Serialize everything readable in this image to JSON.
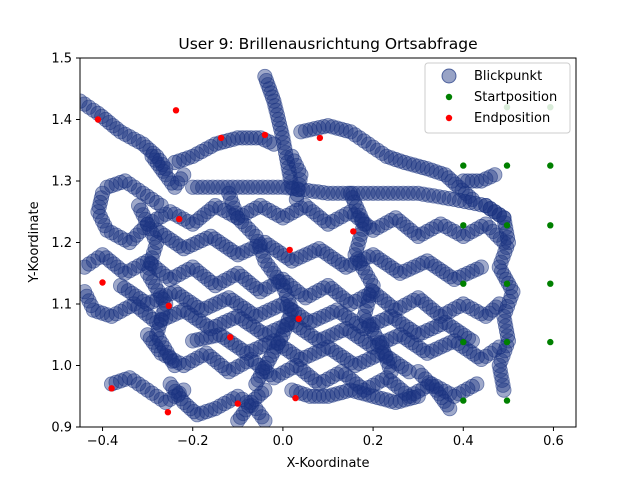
{
  "chart_data": {
    "type": "scatter",
    "title": "User 9: Brillenausrichtung Ortsabfrage",
    "xlabel": "X-Koordinate",
    "ylabel": "Y-Koordinate",
    "xlim": [
      -0.45,
      0.65
    ],
    "ylim": [
      0.9,
      1.5
    ],
    "xticks": [
      -0.4,
      -0.2,
      0.0,
      0.2,
      0.4,
      0.6
    ],
    "xtick_labels": [
      "−0.4",
      "−0.2",
      "0.0",
      "0.2",
      "0.4",
      "0.6"
    ],
    "yticks": [
      0.9,
      1.0,
      1.1,
      1.2,
      1.3,
      1.4,
      1.5
    ],
    "ytick_labels": [
      "0.9",
      "1.0",
      "1.1",
      "1.2",
      "1.3",
      "1.4",
      "1.5"
    ],
    "grid": false,
    "legend_position": "top-right",
    "series": [
      {
        "name": "Blickpunkt",
        "color": "#1a3380",
        "marker": "circle-large-translucent",
        "paths": [
          [
            [
              -0.45,
              1.43
            ],
            [
              -0.41,
              1.41
            ],
            [
              -0.36,
              1.38
            ],
            [
              -0.31,
              1.36
            ],
            [
              -0.28,
              1.34
            ],
            [
              -0.26,
              1.32
            ]
          ],
          [
            [
              -0.29,
              1.34
            ],
            [
              -0.26,
              1.31
            ],
            [
              -0.24,
              1.29
            ],
            [
              -0.22,
              1.31
            ]
          ],
          [
            [
              -0.24,
              1.33
            ],
            [
              -0.2,
              1.34
            ],
            [
              -0.15,
              1.36
            ],
            [
              -0.1,
              1.37
            ],
            [
              -0.05,
              1.37
            ],
            [
              -0.02,
              1.36
            ]
          ],
          [
            [
              -0.04,
              1.47
            ],
            [
              -0.03,
              1.45
            ],
            [
              -0.02,
              1.43
            ],
            [
              -0.01,
              1.4
            ],
            [
              0.0,
              1.37
            ],
            [
              0.01,
              1.33
            ],
            [
              0.02,
              1.29
            ]
          ],
          [
            [
              0.04,
              1.38
            ],
            [
              0.1,
              1.39
            ],
            [
              0.15,
              1.38
            ],
            [
              0.19,
              1.36
            ],
            [
              0.23,
              1.34
            ],
            [
              0.27,
              1.33
            ],
            [
              0.32,
              1.32
            ],
            [
              0.36,
              1.31
            ],
            [
              0.39,
              1.29
            ],
            [
              0.42,
              1.27
            ]
          ],
          [
            [
              0.02,
              1.34
            ],
            [
              0.04,
              1.31
            ],
            [
              0.03,
              1.27
            ]
          ],
          [
            [
              0.4,
              1.3
            ],
            [
              0.44,
              1.3
            ],
            [
              0.47,
              1.31
            ]
          ],
          [
            [
              -0.39,
              1.29
            ],
            [
              -0.35,
              1.3
            ],
            [
              -0.31,
              1.28
            ],
            [
              -0.27,
              1.26
            ]
          ],
          [
            [
              -0.2,
              1.29
            ],
            [
              -0.1,
              1.29
            ],
            [
              0.0,
              1.29
            ],
            [
              0.1,
              1.28
            ],
            [
              0.2,
              1.28
            ],
            [
              0.3,
              1.28
            ],
            [
              0.38,
              1.27
            ],
            [
              0.45,
              1.26
            ],
            [
              0.49,
              1.24
            ]
          ],
          [
            [
              -0.4,
              1.28
            ],
            [
              -0.41,
              1.25
            ],
            [
              -0.39,
              1.22
            ],
            [
              -0.34,
              1.2
            ],
            [
              -0.3,
              1.23
            ],
            [
              -0.25,
              1.25
            ],
            [
              -0.2,
              1.23
            ],
            [
              -0.15,
              1.26
            ],
            [
              -0.1,
              1.24
            ],
            [
              -0.05,
              1.26
            ],
            [
              0.0,
              1.24
            ],
            [
              0.05,
              1.26
            ],
            [
              0.1,
              1.23
            ],
            [
              0.15,
              1.25
            ],
            [
              0.2,
              1.22
            ],
            [
              0.25,
              1.24
            ],
            [
              0.3,
              1.21
            ],
            [
              0.35,
              1.23
            ],
            [
              0.4,
              1.21
            ],
            [
              0.45,
              1.23
            ],
            [
              0.49,
              1.2
            ]
          ],
          [
            [
              0.45,
              1.26
            ],
            [
              0.49,
              1.24
            ],
            [
              0.5,
              1.2
            ],
            [
              0.48,
              1.16
            ],
            [
              0.51,
              1.12
            ],
            [
              0.49,
              1.08
            ],
            [
              0.5,
              1.04
            ],
            [
              0.48,
              1.0
            ],
            [
              0.49,
              0.96
            ]
          ],
          [
            [
              -0.44,
              1.16
            ],
            [
              -0.4,
              1.18
            ],
            [
              -0.35,
              1.15
            ],
            [
              -0.3,
              1.17
            ],
            [
              -0.25,
              1.14
            ],
            [
              -0.2,
              1.16
            ],
            [
              -0.15,
              1.13
            ],
            [
              -0.1,
              1.15
            ],
            [
              -0.05,
              1.12
            ],
            [
              0.0,
              1.14
            ],
            [
              0.05,
              1.11
            ],
            [
              0.1,
              1.13
            ],
            [
              0.15,
              1.1
            ],
            [
              0.2,
              1.12
            ],
            [
              0.25,
              1.09
            ],
            [
              0.3,
              1.11
            ],
            [
              0.35,
              1.08
            ],
            [
              0.4,
              1.1
            ],
            [
              0.45,
              1.08
            ],
            [
              0.48,
              1.1
            ]
          ],
          [
            [
              -0.44,
              1.12
            ],
            [
              -0.42,
              1.09
            ],
            [
              -0.38,
              1.08
            ],
            [
              -0.33,
              1.1
            ],
            [
              -0.28,
              1.07
            ],
            [
              -0.22,
              1.09
            ],
            [
              -0.16,
              1.06
            ],
            [
              -0.1,
              1.08
            ],
            [
              -0.04,
              1.05
            ],
            [
              0.02,
              1.07
            ],
            [
              0.08,
              1.04
            ],
            [
              0.14,
              1.06
            ],
            [
              0.2,
              1.03
            ],
            [
              0.26,
              1.05
            ],
            [
              0.32,
              1.02
            ],
            [
              0.38,
              1.04
            ],
            [
              0.44,
              1.01
            ],
            [
              0.48,
              1.03
            ]
          ],
          [
            [
              -0.3,
              1.05
            ],
            [
              -0.27,
              1.02
            ],
            [
              -0.22,
              1.0
            ],
            [
              -0.17,
              1.02
            ],
            [
              -0.12,
              0.99
            ],
            [
              -0.07,
              1.01
            ],
            [
              -0.02,
              0.98
            ],
            [
              0.03,
              1.0
            ],
            [
              0.08,
              0.97
            ],
            [
              0.13,
              0.99
            ],
            [
              0.18,
              0.96
            ],
            [
              0.23,
              0.98
            ],
            [
              0.28,
              0.95
            ],
            [
              0.33,
              0.97
            ],
            [
              0.38,
              0.95
            ],
            [
              0.43,
              0.97
            ]
          ],
          [
            [
              -0.38,
              0.97
            ],
            [
              -0.34,
              0.98
            ],
            [
              -0.3,
              0.96
            ],
            [
              -0.26,
              0.94
            ],
            [
              -0.22,
              0.96
            ]
          ],
          [
            [
              -0.25,
              0.97
            ],
            [
              -0.22,
              0.94
            ],
            [
              -0.19,
              0.92
            ],
            [
              -0.15,
              0.93
            ],
            [
              -0.1,
              0.95
            ],
            [
              -0.06,
              0.93
            ],
            [
              -0.04,
              0.91
            ]
          ],
          [
            [
              0.02,
              0.96
            ],
            [
              0.06,
              0.95
            ],
            [
              0.1,
              0.95
            ],
            [
              0.15,
              0.96
            ],
            [
              0.2,
              0.95
            ],
            [
              0.25,
              0.94
            ],
            [
              0.3,
              0.95
            ]
          ],
          [
            [
              0.3,
              0.99
            ],
            [
              0.34,
              0.96
            ],
            [
              0.37,
              0.93
            ]
          ],
          [
            [
              -0.1,
              0.91
            ],
            [
              -0.07,
              0.94
            ],
            [
              -0.04,
              0.96
            ]
          ],
          [
            [
              -0.28,
              1.22
            ],
            [
              -0.22,
              1.19
            ],
            [
              -0.16,
              1.21
            ],
            [
              -0.1,
              1.18
            ],
            [
              -0.04,
              1.2
            ],
            [
              0.02,
              1.17
            ],
            [
              0.08,
              1.19
            ],
            [
              0.14,
              1.16
            ],
            [
              0.2,
              1.18
            ],
            [
              0.26,
              1.15
            ],
            [
              0.32,
              1.17
            ],
            [
              0.38,
              1.14
            ],
            [
              0.44,
              1.16
            ]
          ],
          [
            [
              -0.36,
              1.13
            ],
            [
              -0.3,
              1.1
            ],
            [
              -0.24,
              1.12
            ],
            [
              -0.18,
              1.09
            ],
            [
              -0.12,
              1.11
            ],
            [
              -0.06,
              1.08
            ],
            [
              0.0,
              1.1
            ],
            [
              0.06,
              1.07
            ],
            [
              0.12,
              1.09
            ],
            [
              0.18,
              1.06
            ],
            [
              0.24,
              1.08
            ],
            [
              0.3,
              1.05
            ],
            [
              0.36,
              1.07
            ],
            [
              0.42,
              1.04
            ]
          ],
          [
            [
              -0.2,
              1.04
            ],
            [
              -0.14,
              1.05
            ],
            [
              -0.08,
              1.02
            ],
            [
              -0.02,
              1.04
            ],
            [
              0.04,
              1.01
            ],
            [
              0.1,
              1.03
            ],
            [
              0.16,
              1.0
            ],
            [
              0.22,
              1.02
            ],
            [
              0.28,
              0.99
            ]
          ],
          [
            [
              -0.12,
              1.28
            ],
            [
              -0.1,
              1.24
            ],
            [
              -0.06,
              1.21
            ],
            [
              -0.04,
              1.17
            ],
            [
              0.0,
              1.13
            ],
            [
              0.02,
              1.09
            ],
            [
              0.0,
              1.05
            ],
            [
              -0.03,
              1.01
            ],
            [
              -0.06,
              0.97
            ]
          ],
          [
            [
              0.15,
              1.28
            ],
            [
              0.18,
              1.23
            ],
            [
              0.16,
              1.18
            ],
            [
              0.2,
              1.13
            ],
            [
              0.18,
              1.08
            ],
            [
              0.22,
              1.03
            ],
            [
              0.24,
              0.99
            ]
          ],
          [
            [
              -0.32,
              1.26
            ],
            [
              -0.28,
              1.2
            ],
            [
              -0.3,
              1.15
            ],
            [
              -0.26,
              1.1
            ],
            [
              -0.28,
              1.05
            ],
            [
              -0.24,
              1.0
            ]
          ]
        ]
      },
      {
        "name": "Startposition",
        "color": "#008000",
        "points": [
          [
            0.4,
            1.325
          ],
          [
            0.4,
            1.228
          ],
          [
            0.4,
            1.133
          ],
          [
            0.4,
            1.038
          ],
          [
            0.4,
            0.943
          ],
          [
            0.497,
            1.42
          ],
          [
            0.497,
            1.325
          ],
          [
            0.497,
            1.228
          ],
          [
            0.497,
            1.133
          ],
          [
            0.497,
            1.038
          ],
          [
            0.497,
            0.943
          ],
          [
            0.593,
            1.42
          ],
          [
            0.593,
            1.325
          ],
          [
            0.593,
            1.228
          ],
          [
            0.593,
            1.133
          ],
          [
            0.593,
            1.038
          ]
        ]
      },
      {
        "name": "Endposition",
        "color": "#ff0000",
        "points": [
          [
            -0.41,
            1.4
          ],
          [
            -0.237,
            1.415
          ],
          [
            -0.137,
            1.37
          ],
          [
            -0.04,
            1.375
          ],
          [
            0.082,
            1.37
          ],
          [
            -0.23,
            1.238
          ],
          [
            0.015,
            1.188
          ],
          [
            0.156,
            1.218
          ],
          [
            -0.4,
            1.135
          ],
          [
            -0.253,
            1.097
          ],
          [
            0.035,
            1.076
          ],
          [
            -0.117,
            1.046
          ],
          [
            -0.38,
            0.963
          ],
          [
            -0.255,
            0.924
          ],
          [
            -0.1,
            0.938
          ],
          [
            0.028,
            0.947
          ]
        ]
      }
    ]
  }
}
